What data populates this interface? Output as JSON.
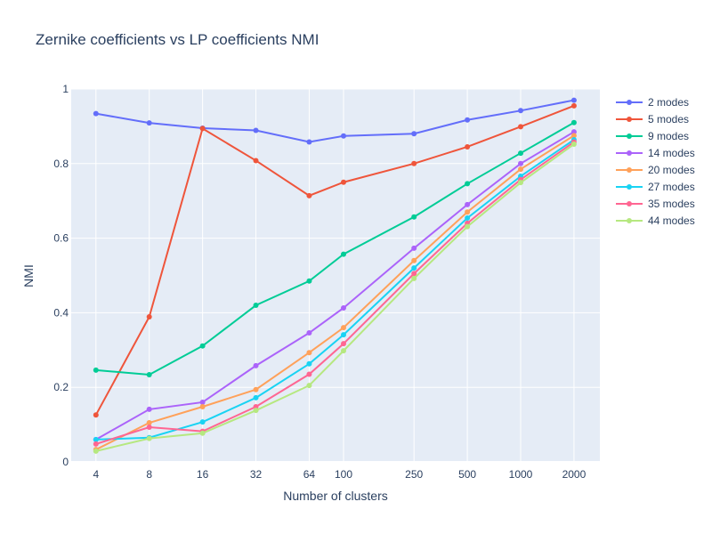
{
  "chart_data": {
    "type": "line",
    "title": "Zernike coefficients vs LP coefficients NMI",
    "xlabel": "Number of clusters",
    "ylabel": "NMI",
    "x_scale": "log",
    "x": [
      4,
      8,
      16,
      32,
      64,
      100,
      250,
      500,
      1000,
      2000
    ],
    "x_tick_labels": [
      "4",
      "8",
      "16",
      "32",
      "64",
      "100",
      "250",
      "500",
      "1000",
      "2000"
    ],
    "ylim": [
      0,
      1
    ],
    "y_ticks": [
      0,
      0.2,
      0.4,
      0.6,
      0.8,
      1
    ],
    "y_tick_labels": [
      "0",
      "0.2",
      "0.4",
      "0.6",
      "0.8",
      "1"
    ],
    "grid": true,
    "legend_position": "right",
    "series": [
      {
        "name": "2 modes",
        "color": "#636efa",
        "values": [
          0.934,
          0.909,
          0.895,
          0.889,
          0.858,
          0.874,
          0.88,
          0.917,
          0.942,
          0.97
        ]
      },
      {
        "name": "5 modes",
        "color": "#EF553B",
        "values": [
          0.126,
          0.389,
          0.894,
          0.808,
          0.714,
          0.75,
          0.8,
          0.845,
          0.899,
          0.955
        ]
      },
      {
        "name": "9 modes",
        "color": "#00cc96",
        "values": [
          0.246,
          0.234,
          0.311,
          0.42,
          0.485,
          0.557,
          0.657,
          0.746,
          0.828,
          0.91
        ]
      },
      {
        "name": "14 modes",
        "color": "#ab63fa",
        "values": [
          0.06,
          0.141,
          0.16,
          0.258,
          0.346,
          0.413,
          0.573,
          0.69,
          0.8,
          0.885
        ]
      },
      {
        "name": "20 modes",
        "color": "#FFA15A",
        "values": [
          0.033,
          0.105,
          0.148,
          0.194,
          0.293,
          0.36,
          0.54,
          0.67,
          0.785,
          0.875
        ]
      },
      {
        "name": "27 modes",
        "color": "#19d3f3",
        "values": [
          0.06,
          0.065,
          0.107,
          0.172,
          0.263,
          0.341,
          0.52,
          0.654,
          0.766,
          0.864
        ]
      },
      {
        "name": "35 modes",
        "color": "#FF6692",
        "values": [
          0.048,
          0.093,
          0.082,
          0.148,
          0.235,
          0.317,
          0.505,
          0.64,
          0.757,
          0.858
        ]
      },
      {
        "name": "44 modes",
        "color": "#B6E880",
        "values": [
          0.029,
          0.063,
          0.077,
          0.138,
          0.205,
          0.298,
          0.492,
          0.631,
          0.749,
          0.852
        ]
      }
    ]
  }
}
